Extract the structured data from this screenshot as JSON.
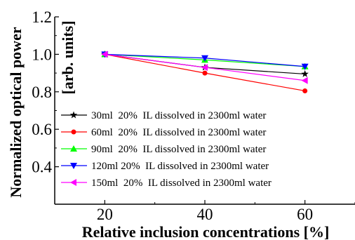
{
  "chart_data": {
    "type": "line",
    "title": "",
    "xlabel": "Relative inclusion concentrations [%]",
    "ylabel": "Normalized optical power",
    "ylabel_unit": "[arb. units]",
    "x": [
      20,
      40,
      60
    ],
    "x_ticks": [
      "20",
      "40",
      "60"
    ],
    "xlim": [
      10,
      70
    ],
    "ylim": [
      0.2,
      1.2
    ],
    "y_ticks": [
      "0.4",
      "0.6",
      "0.8",
      "1.0",
      "1.2"
    ],
    "grid": false,
    "legend_placement": "bottom-right",
    "series": [
      {
        "name": "30ml  20%  IL dissolved in 2300ml water",
        "values": [
          1.0,
          0.93,
          0.895
        ],
        "color": "#000000",
        "marker": "star"
      },
      {
        "name": "60ml  20%  IL dissolved in 2300ml water",
        "values": [
          1.0,
          0.9,
          0.805
        ],
        "color": "#ff0000",
        "marker": "circle"
      },
      {
        "name": "90ml  20%  IL dissolved in 2300ml water",
        "values": [
          1.0,
          0.97,
          0.935
        ],
        "color": "#00ff00",
        "marker": "triangle-up"
      },
      {
        "name": "120ml 20%  IL dissolved in 2300ml water",
        "values": [
          1.0,
          0.98,
          0.935
        ],
        "color": "#0000ff",
        "marker": "triangle-down"
      },
      {
        "name": "150ml  20%  IL dissolved in 2300ml water",
        "values": [
          1.0,
          0.93,
          0.86
        ],
        "color": "#ff00ff",
        "marker": "triangle-left"
      }
    ]
  }
}
